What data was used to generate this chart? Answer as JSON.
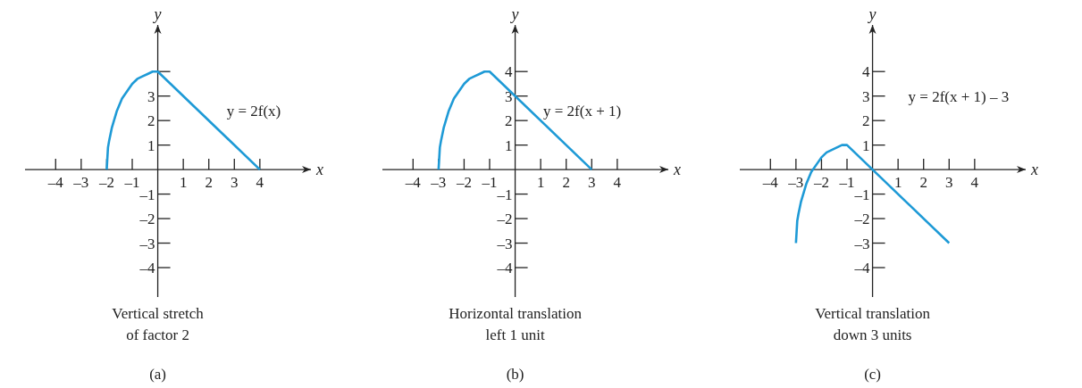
{
  "chart_data": [
    {
      "type": "line",
      "xlabel": "x",
      "ylabel": "y",
      "xlim": [
        -5.2,
        6
      ],
      "ylim": [
        -5.2,
        5.9
      ],
      "xticks": [
        {
          "value": -4,
          "label": "–4"
        },
        {
          "value": -3,
          "label": "–3"
        },
        {
          "value": -2,
          "label": "–2"
        },
        {
          "value": -1,
          "label": "–1"
        },
        1,
        2,
        3,
        4
      ],
      "yticks": [
        {
          "value": -4,
          "label": "–4"
        },
        {
          "value": -3,
          "label": "–3"
        },
        {
          "value": -2,
          "label": "–2"
        },
        {
          "value": -1,
          "label": "–1"
        },
        1,
        2,
        3,
        {
          "value": 4,
          "label": null
        }
      ],
      "series": [
        {
          "color": "#1e9ad6",
          "x": [
            -2,
            -1.95,
            -1.9,
            -1.8,
            -1.6,
            -1.4,
            -1.2,
            -1,
            -0.8,
            -0.6,
            -0.4,
            -0.2,
            0,
            4
          ],
          "values": [
            0,
            0.9,
            1.2,
            1.7,
            2.4,
            2.9,
            3.2,
            3.5,
            3.7,
            3.8,
            3.9,
            4,
            4,
            0
          ]
        }
      ],
      "annotations": [
        "y = 2f(x)",
        "Vertical stretch\nof factor 2",
        "(a)"
      ]
    },
    {
      "type": "line",
      "xlabel": "x",
      "ylabel": "y",
      "xlim": [
        -5.2,
        6
      ],
      "ylim": [
        -5.2,
        5.9
      ],
      "xticks": [
        {
          "value": -4,
          "label": "–4"
        },
        {
          "value": -3,
          "label": "–3"
        },
        {
          "value": -2,
          "label": "–2"
        },
        {
          "value": -1,
          "label": "–1"
        },
        1,
        2,
        3,
        4
      ],
      "yticks": [
        {
          "value": -4,
          "label": "–4"
        },
        {
          "value": -3,
          "label": "–3"
        },
        {
          "value": -2,
          "label": "–2"
        },
        {
          "value": -1,
          "label": "–1"
        },
        1,
        2,
        3,
        4
      ],
      "series": [
        {
          "color": "#1e9ad6",
          "x": [
            -3,
            -2.95,
            -2.9,
            -2.8,
            -2.6,
            -2.4,
            -2.2,
            -2,
            -1.8,
            -1.6,
            -1.4,
            -1.2,
            -1,
            3
          ],
          "values": [
            0,
            0.9,
            1.2,
            1.7,
            2.4,
            2.9,
            3.2,
            3.5,
            3.7,
            3.8,
            3.9,
            4,
            4,
            0
          ]
        }
      ],
      "annotations": [
        "y = 2f(x + 1)",
        "Horizontal translation\nleft 1 unit",
        "(b)"
      ]
    },
    {
      "type": "line",
      "xlabel": "x",
      "ylabel": "y",
      "xlim": [
        -5.2,
        6
      ],
      "ylim": [
        -5.2,
        5.9
      ],
      "xticks": [
        {
          "value": -4,
          "label": "–4"
        },
        {
          "value": -3,
          "label": "–3"
        },
        {
          "value": -2,
          "label": "–2"
        },
        {
          "value": -1,
          "label": "–1"
        },
        1,
        2,
        3,
        4
      ],
      "yticks": [
        {
          "value": -4,
          "label": "–4"
        },
        {
          "value": -3,
          "label": "–3"
        },
        {
          "value": -2,
          "label": "–2"
        },
        {
          "value": -1,
          "label": "–1"
        },
        1,
        2,
        3,
        4
      ],
      "series": [
        {
          "color": "#1e9ad6",
          "x": [
            -3,
            -2.95,
            -2.9,
            -2.8,
            -2.6,
            -2.4,
            -2.2,
            -2,
            -1.8,
            -1.6,
            -1.4,
            -1.2,
            -1,
            3
          ],
          "values": [
            -3,
            -2.1,
            -1.8,
            -1.3,
            -0.6,
            -0.1,
            0.2,
            0.5,
            0.7,
            0.8,
            0.9,
            1,
            1,
            -3
          ]
        }
      ],
      "annotations": [
        "y = 2f(x + 1) – 3",
        "Vertical translation\ndown 3 units",
        "(c)"
      ]
    }
  ]
}
